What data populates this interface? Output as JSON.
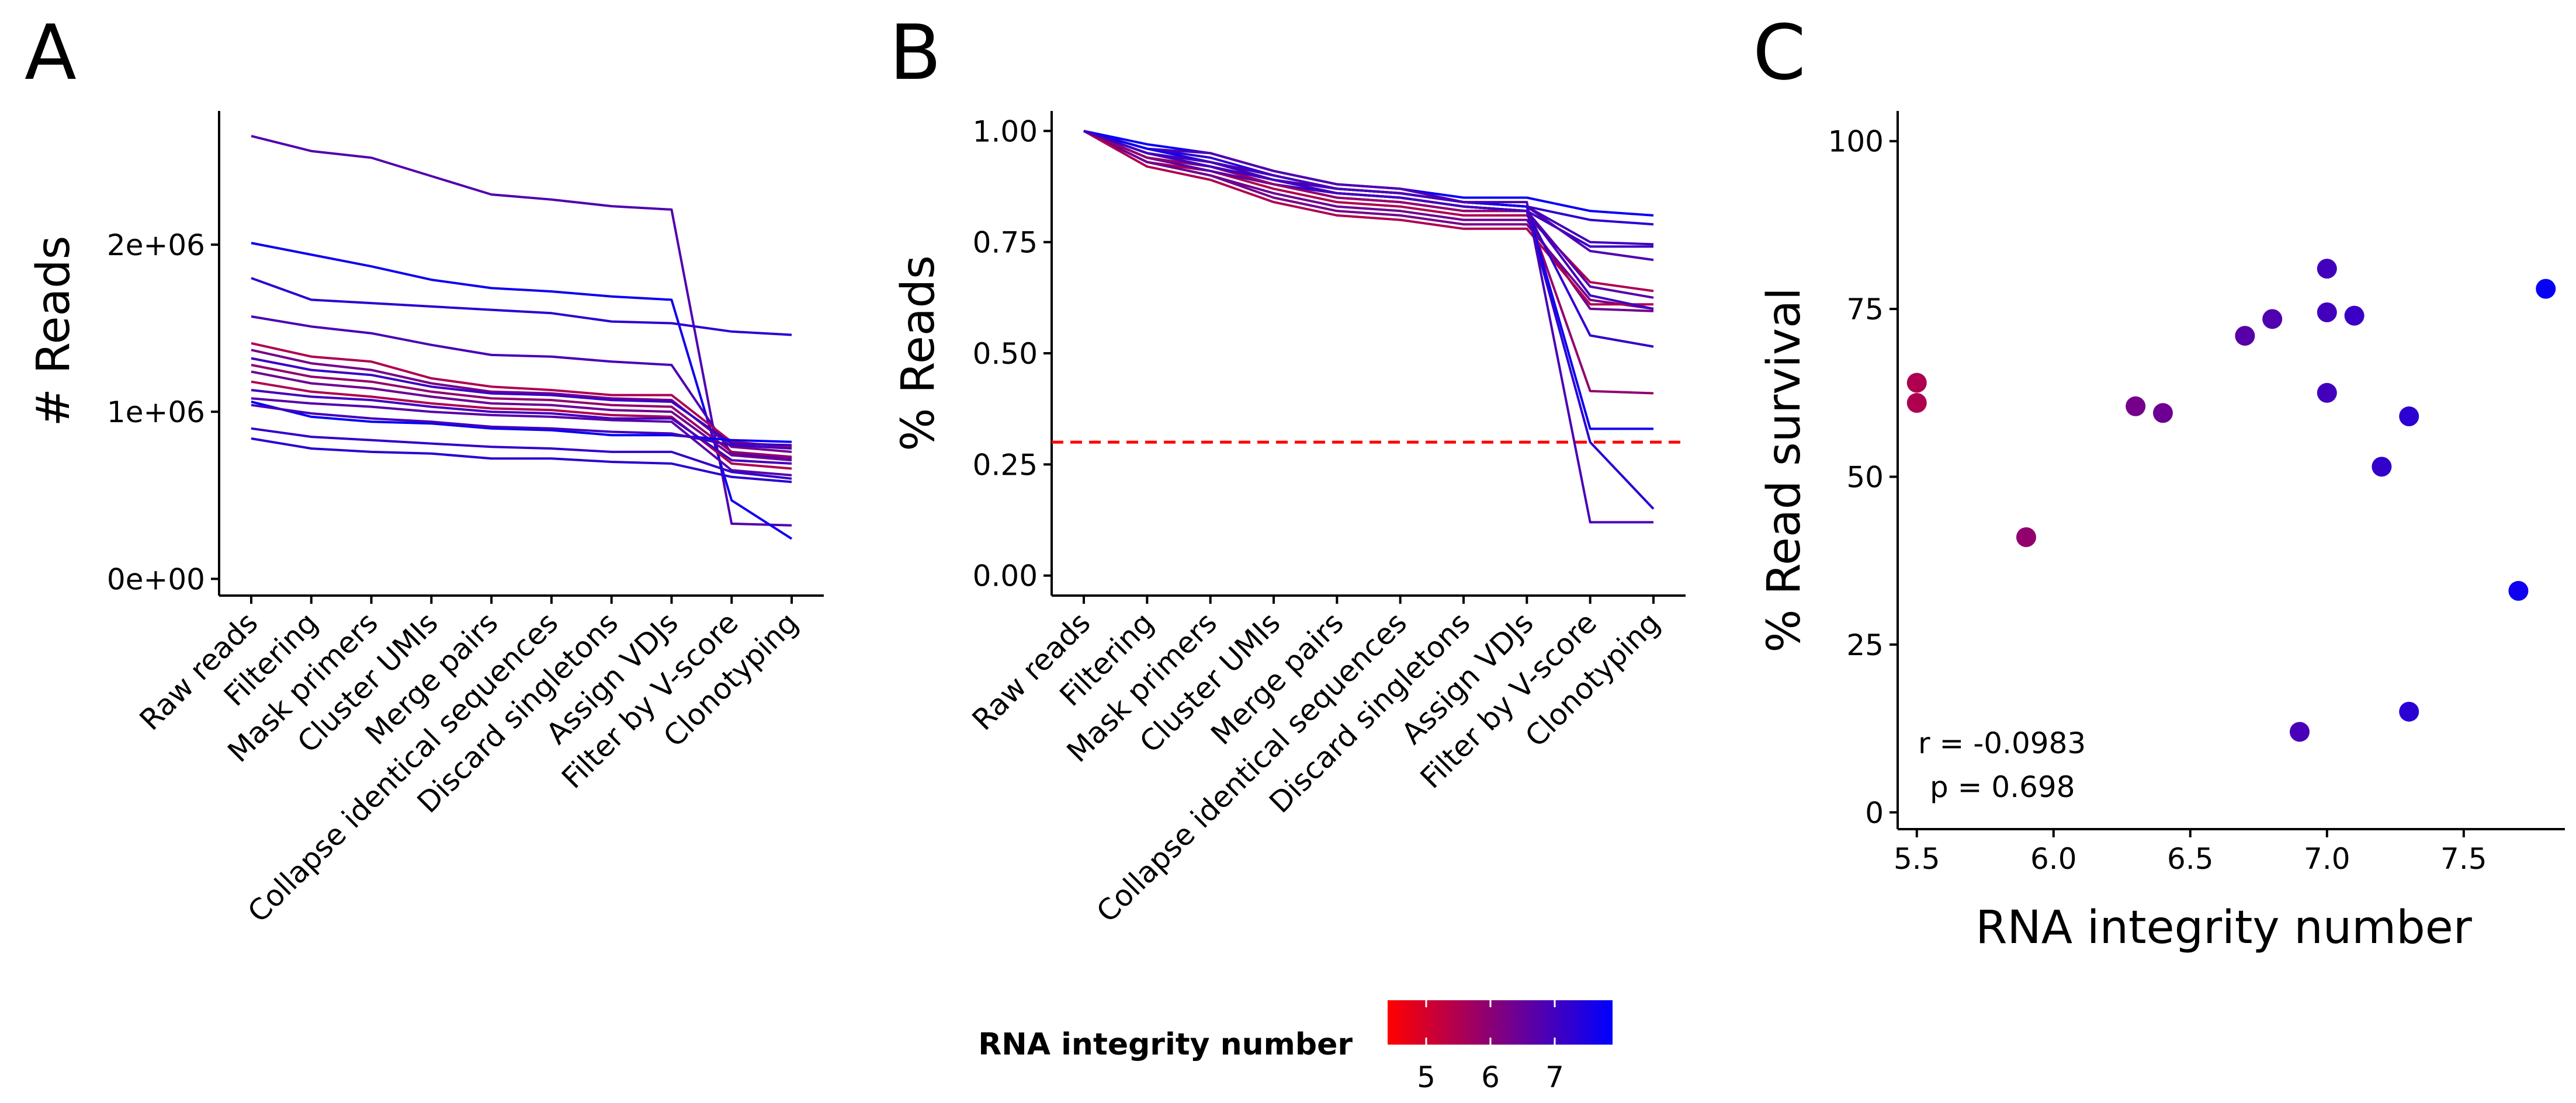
{
  "panels": {
    "A": {
      "letter": "A"
    },
    "B": {
      "letter": "B"
    },
    "C": {
      "letter": "C"
    }
  },
  "colorbar": {
    "title": "RNA integrity number",
    "ticks": [
      "5",
      "6",
      "7"
    ],
    "tick_values": [
      5,
      6,
      7
    ],
    "range": [
      4.4,
      7.9
    ],
    "low_color": "#ff0000",
    "high_color": "#0000ff"
  },
  "chart_data": [
    {
      "panel": "A",
      "type": "line",
      "ylabel": "# Reads",
      "xlabel": "",
      "categories": [
        "Raw reads",
        "Filtering",
        "Mask primers",
        "Cluster UMIs",
        "Merge pairs",
        "Collapse identical sequences",
        "Discard singletons",
        "Assign VDJs",
        "Filter by V-score",
        "Clonotyping"
      ],
      "yticks": [
        "0e+00",
        "1e+06",
        "2e+06"
      ],
      "ytick_values": [
        0,
        1000000,
        2000000
      ],
      "ylim": [
        -100000,
        2800000
      ],
      "grid": false,
      "series": [
        {
          "rin": 6.8,
          "values": [
            2650000,
            2560000,
            2520000,
            2410000,
            2300000,
            2270000,
            2230000,
            2210000,
            330000,
            320000
          ]
        },
        {
          "rin": 7.7,
          "values": [
            2010000,
            1940000,
            1870000,
            1790000,
            1740000,
            1720000,
            1690000,
            1670000,
            470000,
            240000
          ]
        },
        {
          "rin": 7.3,
          "values": [
            1800000,
            1670000,
            1650000,
            1630000,
            1610000,
            1590000,
            1540000,
            1530000,
            1480000,
            1460000
          ]
        },
        {
          "rin": 6.9,
          "values": [
            1570000,
            1510000,
            1470000,
            1400000,
            1340000,
            1330000,
            1300000,
            1280000,
            750000,
            720000
          ]
        },
        {
          "rin": 5.5,
          "values": [
            1410000,
            1330000,
            1300000,
            1200000,
            1150000,
            1130000,
            1100000,
            1100000,
            820000,
            790000
          ]
        },
        {
          "rin": 6.3,
          "values": [
            1370000,
            1290000,
            1250000,
            1170000,
            1120000,
            1110000,
            1080000,
            1070000,
            790000,
            760000
          ]
        },
        {
          "rin": 7.1,
          "values": [
            1320000,
            1250000,
            1220000,
            1150000,
            1110000,
            1100000,
            1070000,
            1060000,
            810000,
            800000
          ]
        },
        {
          "rin": 5.9,
          "values": [
            1280000,
            1210000,
            1180000,
            1120000,
            1080000,
            1070000,
            1040000,
            1030000,
            760000,
            730000
          ]
        },
        {
          "rin": 6.4,
          "values": [
            1240000,
            1170000,
            1140000,
            1090000,
            1050000,
            1040000,
            1010000,
            1000000,
            740000,
            710000
          ]
        },
        {
          "rin": 5.5,
          "values": [
            1180000,
            1120000,
            1090000,
            1050000,
            1020000,
            1010000,
            980000,
            970000,
            690000,
            660000
          ]
        },
        {
          "rin": 7.0,
          "values": [
            1130000,
            1090000,
            1070000,
            1030000,
            1000000,
            990000,
            960000,
            960000,
            710000,
            690000
          ]
        },
        {
          "rin": 6.7,
          "values": [
            1080000,
            1050000,
            1030000,
            1000000,
            980000,
            970000,
            950000,
            940000,
            650000,
            620000
          ]
        },
        {
          "rin": 7.8,
          "values": [
            1060000,
            970000,
            940000,
            930000,
            900000,
            890000,
            860000,
            860000,
            830000,
            820000
          ]
        },
        {
          "rin": 7.0,
          "values": [
            1040000,
            990000,
            960000,
            940000,
            910000,
            900000,
            880000,
            870000,
            800000,
            780000
          ]
        },
        {
          "rin": 7.2,
          "values": [
            900000,
            850000,
            830000,
            810000,
            790000,
            780000,
            760000,
            760000,
            640000,
            600000
          ]
        },
        {
          "rin": 7.3,
          "values": [
            840000,
            780000,
            760000,
            750000,
            720000,
            720000,
            700000,
            690000,
            610000,
            580000
          ]
        }
      ]
    },
    {
      "panel": "B",
      "type": "line",
      "ylabel": "% Reads",
      "xlabel": "",
      "categories": [
        "Raw reads",
        "Filtering",
        "Mask primers",
        "Cluster UMIs",
        "Merge pairs",
        "Collapse identical sequences",
        "Discard singletons",
        "Assign VDJs",
        "Filter by V-score",
        "Clonotyping"
      ],
      "yticks": [
        "0.00",
        "0.25",
        "0.50",
        "0.75",
        "1.00"
      ],
      "ytick_values": [
        0,
        0.25,
        0.5,
        0.75,
        1.0
      ],
      "ylim": [
        -0.045,
        1.045
      ],
      "threshold": {
        "value": 0.3,
        "color": "#ff0000",
        "style": "dashed"
      },
      "grid": false,
      "series": [
        {
          "rin": 7.8,
          "values": [
            1.0,
            0.97,
            0.95,
            0.91,
            0.88,
            0.87,
            0.85,
            0.85,
            0.82,
            0.81
          ]
        },
        {
          "rin": 7.3,
          "values": [
            1.0,
            0.96,
            0.94,
            0.9,
            0.87,
            0.86,
            0.84,
            0.83,
            0.8,
            0.79
          ]
        },
        {
          "rin": 7.0,
          "values": [
            1.0,
            0.95,
            0.93,
            0.89,
            0.87,
            0.86,
            0.84,
            0.83,
            0.75,
            0.745
          ]
        },
        {
          "rin": 7.1,
          "values": [
            1.0,
            0.95,
            0.92,
            0.89,
            0.86,
            0.85,
            0.83,
            0.82,
            0.74,
            0.74
          ]
        },
        {
          "rin": 6.8,
          "values": [
            1.0,
            0.96,
            0.95,
            0.91,
            0.88,
            0.87,
            0.84,
            0.83,
            0.73,
            0.71
          ]
        },
        {
          "rin": 5.5,
          "values": [
            1.0,
            0.93,
            0.91,
            0.87,
            0.84,
            0.83,
            0.81,
            0.81,
            0.66,
            0.64
          ]
        },
        {
          "rin": 6.7,
          "values": [
            1.0,
            0.94,
            0.91,
            0.88,
            0.85,
            0.84,
            0.82,
            0.82,
            0.65,
            0.625
          ]
        },
        {
          "rin": 6.3,
          "values": [
            1.0,
            0.93,
            0.9,
            0.85,
            0.82,
            0.81,
            0.79,
            0.79,
            0.62,
            0.6
          ]
        },
        {
          "rin": 6.4,
          "values": [
            1.0,
            0.93,
            0.9,
            0.86,
            0.83,
            0.82,
            0.8,
            0.8,
            0.6,
            0.595
          ]
        },
        {
          "rin": 5.5,
          "values": [
            1.0,
            0.92,
            0.89,
            0.84,
            0.81,
            0.8,
            0.78,
            0.78,
            0.61,
            0.61
          ]
        },
        {
          "rin": 7.2,
          "values": [
            1.0,
            0.94,
            0.92,
            0.88,
            0.86,
            0.85,
            0.83,
            0.82,
            0.54,
            0.515
          ]
        },
        {
          "rin": 5.9,
          "values": [
            1.0,
            0.94,
            0.92,
            0.88,
            0.85,
            0.84,
            0.82,
            0.82,
            0.415,
            0.41
          ]
        },
        {
          "rin": 7.7,
          "values": [
            1.0,
            0.96,
            0.93,
            0.9,
            0.87,
            0.86,
            0.84,
            0.83,
            0.33,
            0.33
          ]
        },
        {
          "rin": 7.3,
          "values": [
            1.0,
            0.95,
            0.92,
            0.89,
            0.86,
            0.85,
            0.83,
            0.82,
            0.3,
            0.15
          ]
        },
        {
          "rin": 6.9,
          "values": [
            1.0,
            0.95,
            0.93,
            0.9,
            0.87,
            0.86,
            0.84,
            0.84,
            0.12,
            0.12
          ]
        },
        {
          "rin": 7.0,
          "values": [
            1.0,
            0.95,
            0.92,
            0.89,
            0.86,
            0.85,
            0.83,
            0.82,
            0.63,
            0.6
          ]
        }
      ]
    },
    {
      "panel": "C",
      "type": "scatter",
      "xlabel": "RNA integrity number",
      "ylabel": "% Read survival",
      "xticks": [
        "5.5",
        "6.0",
        "6.5",
        "7.0",
        "7.5"
      ],
      "xtick_values": [
        5.5,
        6.0,
        6.5,
        7.0,
        7.5
      ],
      "yticks": [
        "0",
        "25",
        "50",
        "75",
        "100"
      ],
      "ytick_values": [
        0,
        25,
        50,
        75,
        100
      ],
      "xlim": [
        5.43,
        7.87
      ],
      "ylim": [
        -2.5,
        104.5
      ],
      "grid": false,
      "annotation_lines": [
        "r = -0.0983",
        "p = 0.698"
      ],
      "points": [
        {
          "x": 5.5,
          "y": 64.0
        },
        {
          "x": 5.5,
          "y": 61.0
        },
        {
          "x": 5.9,
          "y": 41.0
        },
        {
          "x": 6.3,
          "y": 60.5
        },
        {
          "x": 6.4,
          "y": 59.5
        },
        {
          "x": 6.7,
          "y": 71.0
        },
        {
          "x": 6.8,
          "y": 73.5
        },
        {
          "x": 6.9,
          "y": 12.0
        },
        {
          "x": 7.0,
          "y": 81.0
        },
        {
          "x": 7.0,
          "y": 74.5
        },
        {
          "x": 7.0,
          "y": 62.5
        },
        {
          "x": 7.1,
          "y": 74.0
        },
        {
          "x": 7.2,
          "y": 51.5
        },
        {
          "x": 7.3,
          "y": 59.0
        },
        {
          "x": 7.3,
          "y": 15.0
        },
        {
          "x": 7.7,
          "y": 33.0
        },
        {
          "x": 7.8,
          "y": 78.0
        }
      ]
    }
  ]
}
